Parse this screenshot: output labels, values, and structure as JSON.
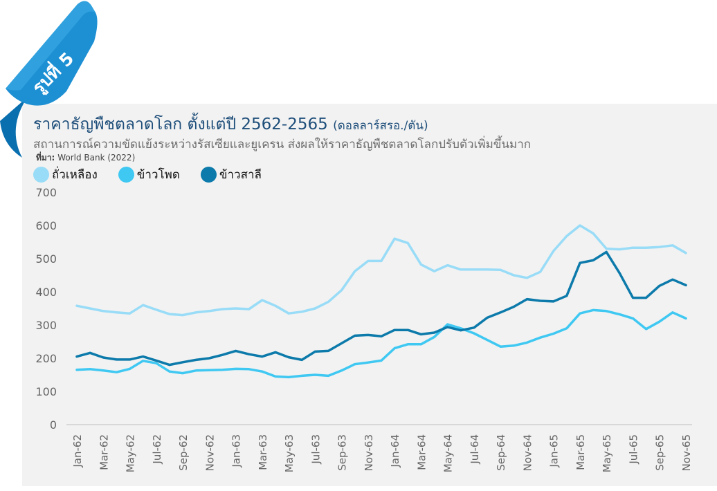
{
  "badge": {
    "label": "รูปที่ 5",
    "color": "#1d8fd3",
    "light_color": "#4ab7ea"
  },
  "header": {
    "title": "ราคาธัญพืชตลาดโลก ตั้งแต่ปี 2562-2565",
    "unit": "(ดอลลาร์สรอ./ตัน)",
    "subtitle": "สถานการณ์ความขัดแย้งระหว่างรัสเซียและยูเครน ส่งผลให้ราคาธัญพืชตลาดโลกปรับตัวเพิ่มขึ้นมาก",
    "source_label": "ที่มา:",
    "source_text": "World Bank (2022)"
  },
  "chart_data": {
    "type": "line",
    "ylim": [
      0,
      700
    ],
    "yticks": [
      0,
      100,
      200,
      300,
      400,
      500,
      600,
      700
    ],
    "grid": false,
    "legend_position": "top-left",
    "tick_labels": [
      "Jan-62",
      "Mar-62",
      "May-62",
      "Jul-62",
      "Sep-62",
      "Nov-62",
      "Jan-63",
      "Mar-63",
      "May-63",
      "Jul-63",
      "Sep-63",
      "Nov-63",
      "Jan-64",
      "Mar-64",
      "May-64",
      "Jul-64",
      "Sep-64",
      "Nov-64",
      "Jan-65",
      "Mar-65",
      "May-65",
      "Jul-65",
      "Sep-65",
      "Nov-65"
    ],
    "x": [
      "Jan-62",
      "Feb-62",
      "Mar-62",
      "Apr-62",
      "May-62",
      "Jun-62",
      "Jul-62",
      "Aug-62",
      "Sep-62",
      "Oct-62",
      "Nov-62",
      "Dec-62",
      "Jan-63",
      "Feb-63",
      "Mar-63",
      "Apr-63",
      "May-63",
      "Jun-63",
      "Jul-63",
      "Aug-63",
      "Sep-63",
      "Oct-63",
      "Nov-63",
      "Dec-63",
      "Jan-64",
      "Feb-64",
      "Mar-64",
      "Apr-64",
      "May-64",
      "Jun-64",
      "Jul-64",
      "Aug-64",
      "Sep-64",
      "Oct-64",
      "Nov-64",
      "Dec-64",
      "Jan-65",
      "Feb-65",
      "Mar-65",
      "Apr-65",
      "May-65",
      "Jun-65",
      "Jul-65",
      "Aug-65",
      "Sep-65",
      "Oct-65",
      "Nov-65"
    ],
    "series": [
      {
        "name": "ถั่วเหลือง",
        "color": "#99dcf7",
        "values": [
          358,
          350,
          342,
          338,
          335,
          360,
          346,
          333,
          330,
          338,
          342,
          348,
          350,
          348,
          375,
          358,
          335,
          340,
          350,
          370,
          405,
          462,
          493,
          493,
          560,
          547,
          482,
          462,
          480,
          467,
          467,
          467,
          466,
          450,
          442,
          460,
          523,
          568,
          600,
          576,
          530,
          528,
          533,
          533,
          535,
          540,
          517
        ]
      },
      {
        "name": "ข้าวโพด",
        "color": "#3fc8f2",
        "values": [
          165,
          167,
          163,
          158,
          168,
          192,
          185,
          160,
          155,
          163,
          164,
          165,
          168,
          167,
          160,
          145,
          143,
          147,
          150,
          147,
          163,
          182,
          187,
          193,
          230,
          242,
          242,
          264,
          302,
          290,
          275,
          255,
          235,
          238,
          247,
          262,
          274,
          290,
          335,
          345,
          342,
          332,
          320,
          288,
          310,
          338,
          320
        ]
      },
      {
        "name": "ข้าวสาลี",
        "color": "#0c7aaa",
        "values": [
          205,
          216,
          202,
          196,
          196,
          205,
          193,
          180,
          188,
          195,
          200,
          210,
          222,
          212,
          205,
          218,
          203,
          195,
          220,
          222,
          245,
          268,
          270,
          266,
          285,
          285,
          272,
          277,
          294,
          284,
          292,
          322,
          338,
          355,
          378,
          373,
          371,
          388,
          487,
          495,
          520,
          456,
          382,
          382,
          418,
          437,
          420
        ]
      }
    ]
  }
}
